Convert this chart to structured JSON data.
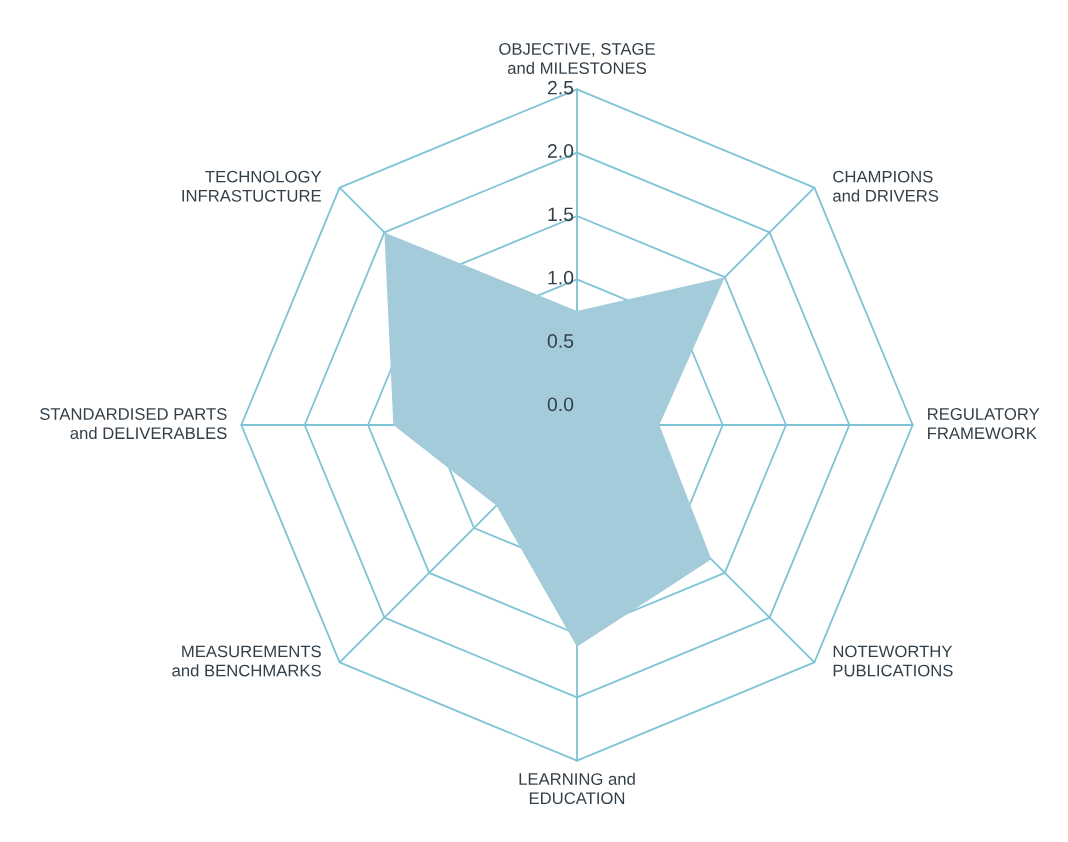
{
  "chart_data": {
    "type": "radar",
    "categories": [
      "OBJECTIVE, STAGE\nand MILESTONES",
      "CHAMPIONS\nand DRIVERS",
      "REGULATORY\nFRAMEWORK",
      "NOTEWORTHY\nPUBLICATIONS",
      "LEARNING and\nEDUCATION",
      "MEASUREMENTS\nand BENCHMARKS",
      "STANDARDISED PARTS\nand DELIVERABLES",
      "TECHNOLOGY\nINFRASTUCTURE"
    ],
    "series": [
      {
        "color": "#a3cbd9",
        "values": [
          0.75,
          1.5,
          0.5,
          1.35,
          1.6,
          0.75,
          1.3,
          2.0
        ]
      }
    ],
    "ylim": [
      -0.15,
      2.5
    ],
    "yticks": [
      {
        "value": 0,
        "label": "0.0"
      },
      {
        "value": 0.5,
        "label": "0.5"
      },
      {
        "value": 1,
        "label": "1.0"
      },
      {
        "value": 1.5,
        "label": "1.5"
      },
      {
        "value": 2,
        "label": "2.0"
      },
      {
        "value": 2.5,
        "label": "2.5"
      }
    ],
    "grid": true
  }
}
